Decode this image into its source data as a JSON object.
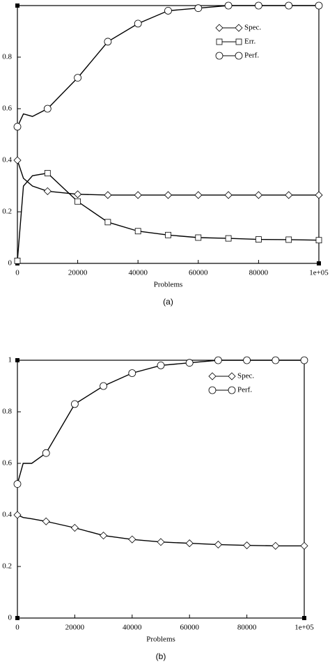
{
  "chart_data": [
    {
      "type": "line",
      "caption": "(a)",
      "xlabel": "Problems",
      "x": [
        0,
        2000,
        5000,
        10000,
        20000,
        30000,
        40000,
        50000,
        60000,
        70000,
        80000,
        90000,
        100000
      ],
      "series": [
        {
          "name": "Spec.",
          "color": "#000000",
          "marker": "diamond",
          "values": [
            0.4,
            0.33,
            0.3,
            0.28,
            0.268,
            0.265,
            0.265,
            0.265,
            0.265,
            0.265,
            0.265,
            0.265,
            0.265
          ]
        },
        {
          "name": "Err.",
          "color": "#000000",
          "marker": "square",
          "values": [
            0.01,
            0.3,
            0.34,
            0.35,
            0.24,
            0.16,
            0.125,
            0.11,
            0.1,
            0.097,
            0.093,
            0.092,
            0.09
          ]
        },
        {
          "name": "Perf.",
          "color": "#000000",
          "marker": "circle",
          "values": [
            0.53,
            0.58,
            0.57,
            0.6,
            0.72,
            0.86,
            0.93,
            0.98,
            0.99,
            1.0,
            1.0,
            1.0,
            1.0
          ]
        }
      ],
      "xlim": [
        0,
        100000
      ],
      "xticks": [
        0,
        20000,
        40000,
        60000,
        80000,
        {
          "value": 100000,
          "label": "1e+05"
        }
      ],
      "ylim": [
        0,
        1
      ],
      "yticks": [
        0,
        0.2,
        0.4,
        0.6,
        0.8
      ],
      "legend": "upper right"
    },
    {
      "type": "line",
      "caption": "(b)",
      "xlabel": "Problems",
      "x": [
        0,
        2000,
        5000,
        10000,
        20000,
        30000,
        40000,
        50000,
        60000,
        70000,
        80000,
        90000,
        100000
      ],
      "series": [
        {
          "name": "Spec.",
          "color": "#000000",
          "marker": "diamond",
          "values": [
            0.4,
            0.39,
            0.385,
            0.375,
            0.35,
            0.32,
            0.305,
            0.295,
            0.29,
            0.285,
            0.282,
            0.28,
            0.28
          ]
        },
        {
          "name": "Perf.",
          "color": "#000000",
          "marker": "circle",
          "values": [
            0.52,
            0.6,
            0.6,
            0.64,
            0.83,
            0.9,
            0.95,
            0.98,
            0.99,
            1.0,
            1.0,
            1.0,
            1.0
          ]
        }
      ],
      "xlim": [
        0,
        100000
      ],
      "xticks": [
        0,
        20000,
        40000,
        60000,
        80000,
        {
          "value": 100000,
          "label": "1e+05"
        }
      ],
      "ylim": [
        0,
        1
      ],
      "yticks": [
        0,
        0.2,
        0.4,
        0.6,
        0.8,
        1
      ],
      "legend": "upper right"
    }
  ]
}
